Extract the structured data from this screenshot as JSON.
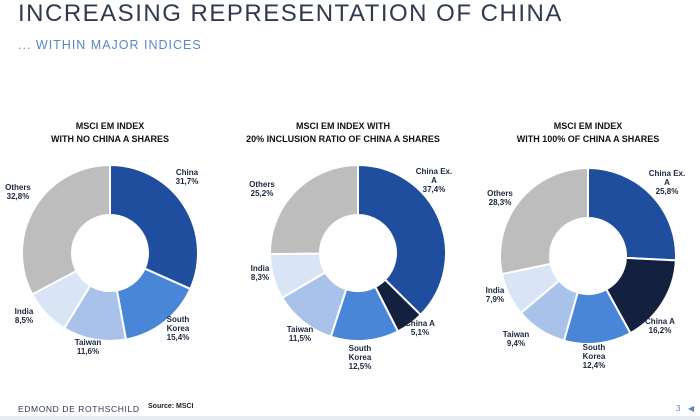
{
  "header": {
    "title": "INCREASING REPRESENTATION OF CHINA",
    "subtitle": "... WITHIN MAJOR INDICES"
  },
  "colors": {
    "china": "#1f4e9f",
    "china_a": "#13213f",
    "south_korea": "#4a86d8",
    "taiwan": "#a8c2ea",
    "india": "#d9e4f5",
    "others": "#bdbdbd"
  },
  "chart_data": [
    {
      "type": "pie",
      "title_lines": [
        "MSCI EM INDEX",
        "WITH NO CHINA A SHARES"
      ],
      "slices": [
        {
          "name_lines": [
            "China"
          ],
          "value_label": "31,7%",
          "value": 31.7,
          "color_key": "china"
        },
        {
          "name_lines": [
            "South",
            "Korea"
          ],
          "value_label": "15,4%",
          "value": 15.4,
          "color_key": "south_korea"
        },
        {
          "name_lines": [
            "Taiwan"
          ],
          "value_label": "11,6%",
          "value": 11.6,
          "color_key": "taiwan"
        },
        {
          "name_lines": [
            "India"
          ],
          "value_label": "8,5%",
          "value": 8.5,
          "color_key": "india"
        },
        {
          "name_lines": [
            "Others"
          ],
          "value_label": "32,8%",
          "value": 32.8,
          "color_key": "others"
        }
      ]
    },
    {
      "type": "pie",
      "title_lines": [
        "MSCI EM INDEX WITH",
        "20% INCLUSION RATIO OF CHINA A SHARES"
      ],
      "slices": [
        {
          "name_lines": [
            "China Ex.",
            "A"
          ],
          "value_label": "37,4%",
          "value": 37.4,
          "color_key": "china"
        },
        {
          "name_lines": [
            "China A"
          ],
          "value_label": "5,1%",
          "value": 5.1,
          "color_key": "china_a"
        },
        {
          "name_lines": [
            "South",
            "Korea"
          ],
          "value_label": "12,5%",
          "value": 12.5,
          "color_key": "south_korea"
        },
        {
          "name_lines": [
            "Taiwan"
          ],
          "value_label": "11,5%",
          "value": 11.5,
          "color_key": "taiwan"
        },
        {
          "name_lines": [
            "India"
          ],
          "value_label": "8,3%",
          "value": 8.3,
          "color_key": "india"
        },
        {
          "name_lines": [
            "Others"
          ],
          "value_label": "25,2%",
          "value": 25.2,
          "color_key": "others"
        }
      ]
    },
    {
      "type": "pie",
      "title_lines": [
        "MSCI EM INDEX",
        "WITH 100% OF CHINA A SHARES"
      ],
      "slices": [
        {
          "name_lines": [
            "China Ex.",
            "A"
          ],
          "value_label": "25,8%",
          "value": 25.8,
          "color_key": "china"
        },
        {
          "name_lines": [
            "China A"
          ],
          "value_label": "16,2%",
          "value": 16.2,
          "color_key": "china_a"
        },
        {
          "name_lines": [
            "South",
            "Korea"
          ],
          "value_label": "12,4%",
          "value": 12.4,
          "color_key": "south_korea"
        },
        {
          "name_lines": [
            "Taiwan"
          ],
          "value_label": "9,4%",
          "value": 9.4,
          "color_key": "taiwan"
        },
        {
          "name_lines": [
            "India"
          ],
          "value_label": "7,9%",
          "value": 7.9,
          "color_key": "india"
        },
        {
          "name_lines": [
            "Others"
          ],
          "value_label": "28,3%",
          "value": 28.3,
          "color_key": "others"
        }
      ]
    }
  ],
  "footer": {
    "brand": "EDMOND DE ROTHSCHILD",
    "source": "Source: MSCI",
    "page_number": "3",
    "nav_icon": "back-arrow-icon"
  }
}
